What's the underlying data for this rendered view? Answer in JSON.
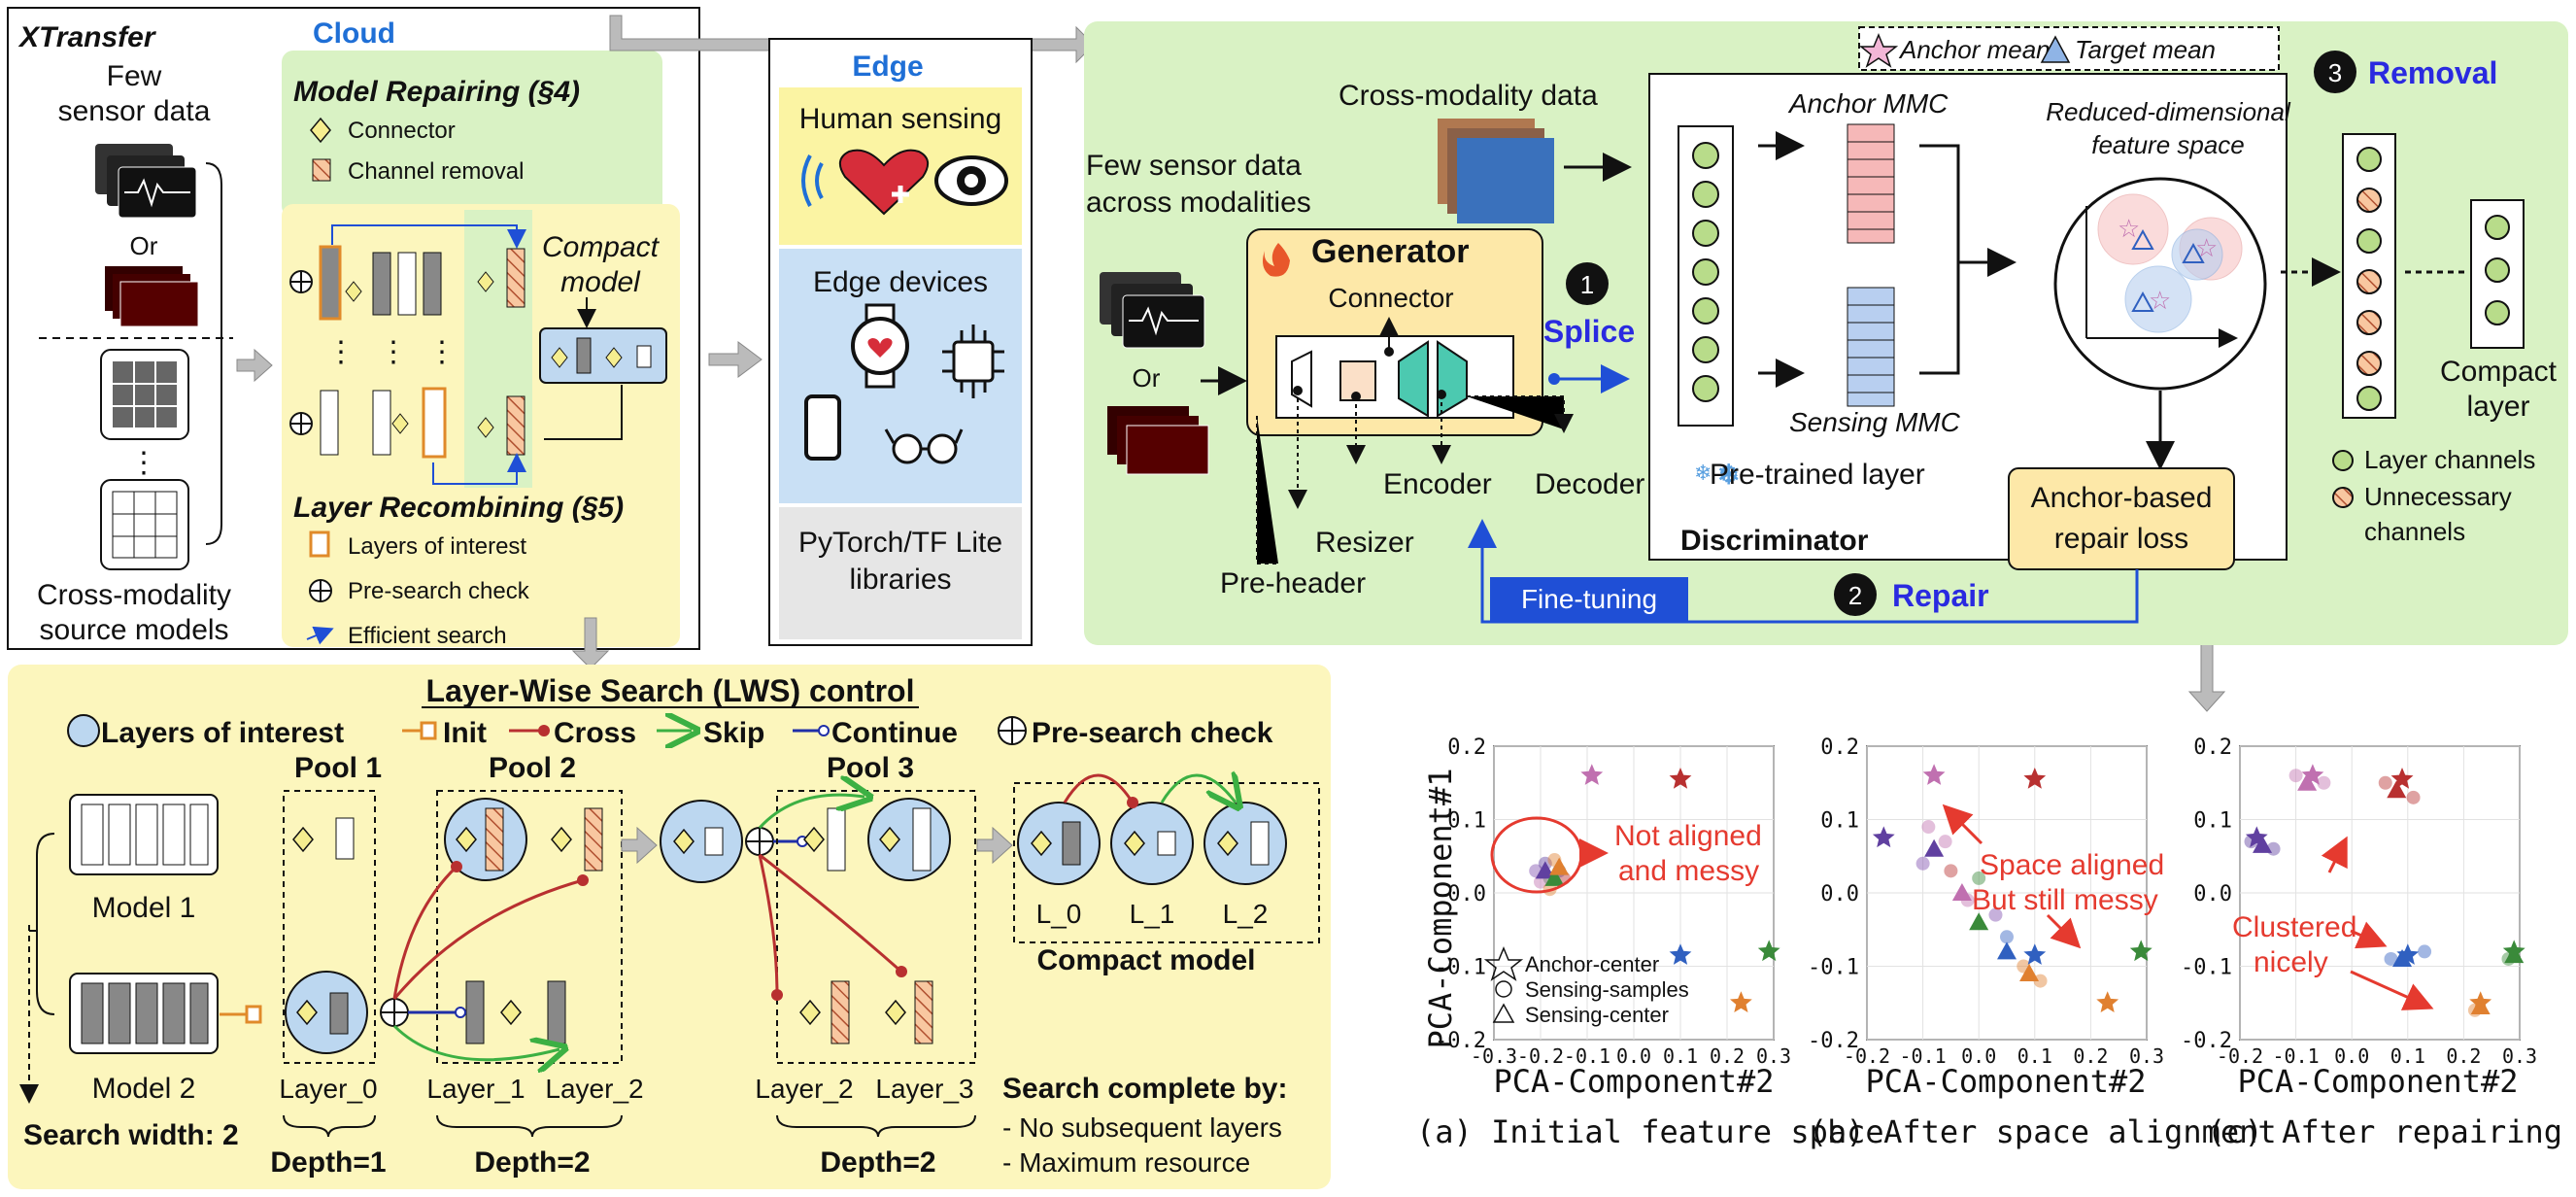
{
  "cloud": {
    "brand": "XTransfer",
    "title": "Cloud",
    "few_sensor_line1": "Few",
    "few_sensor_line2": "sensor data",
    "or": "Or",
    "source_models_line1": "Cross-modality",
    "source_models_line2": "source models",
    "repair_title": "Model Repairing (§4)",
    "repair_items": [
      "Connector",
      "Channel removal"
    ],
    "compact_line1": "Compact",
    "compact_line2": "model",
    "recombine_title": "Layer Recombining (§5)",
    "recombine_items": [
      "Layers of interest",
      "Pre-search check",
      "Efficient search"
    ]
  },
  "edge": {
    "title": "Edge",
    "human_sensing": "Human sensing",
    "devices": "Edge devices",
    "lib_line1": "PyTorch/TF Lite",
    "lib_line2": "libraries"
  },
  "pipeline": {
    "legend_anchor": "Anchor mean",
    "legend_target": "Target mean",
    "cross_modality": "Cross-modality data",
    "few_line1": "Few sensor data",
    "few_line2": "across modalities",
    "or": "Or",
    "generator": "Generator",
    "connector": "Connector",
    "splice_num": "1",
    "splice": "Splice",
    "encoder": "Encoder",
    "decoder": "Decoder",
    "resizer": "Resizer",
    "preheader": "Pre-header",
    "anchor_mmc": "Anchor MMC",
    "sensing_mmc": "Sensing MMC",
    "pretrained": "Pre-trained layer",
    "discriminator": "Discriminator",
    "reduced_line1": "Reduced-dimensional",
    "reduced_line2": "feature space",
    "loss_line1": "Anchor-based",
    "loss_line2": "repair loss",
    "removal_num": "3",
    "removal": "Removal",
    "compact_line1": "Compact",
    "compact_line2": "layer",
    "legend_channels": "Layer channels",
    "legend_unnec_line1": "Unnecessary",
    "legend_unnec_line2": "channels",
    "finetuning": "Fine-tuning",
    "repair_num": "2",
    "repair": "Repair"
  },
  "lws": {
    "title": "Layer-Wise Search (LWS) control",
    "legend": [
      "Layers of interest",
      "Init",
      "Cross",
      "Skip",
      "Continue",
      "Pre-search check"
    ],
    "pools": [
      "Pool 1",
      "Pool 2",
      "Pool 3"
    ],
    "model1": "Model 1",
    "model2": "Model 2",
    "search_width": "Search width: 2",
    "layer_labels": [
      "Layer_0",
      "Layer_1",
      "Layer_2",
      "Layer_2",
      "Layer_3"
    ],
    "depths": [
      "Depth=1",
      "Depth=2",
      "Depth=2"
    ],
    "compact_labels": [
      "L_0",
      "L_1",
      "L_2"
    ],
    "compact_model": "Compact model",
    "complete_title": "Search complete by:",
    "complete_items": [
      "- No subsequent layers",
      "- Maximum resource"
    ]
  },
  "charts_text": {
    "ylabel": "PCA-Component#1",
    "xlabel": "PCA-Component#2",
    "captions": [
      "(a) Initial feature space",
      "(b) After space alignment",
      "(c) After repairing"
    ],
    "legend": [
      "Anchor-center",
      "Sensing-samples",
      "Sensing-center"
    ],
    "annot_a_line1": "Not aligned",
    "annot_a_line2": "and messy",
    "annot_b_line1": "Space aligned",
    "annot_b_line2": "But still messy",
    "annot_c_line1": "Clustered",
    "annot_c_line2": "nicely"
  },
  "chart_data": [
    {
      "type": "scatter",
      "caption": "(a) Initial feature space",
      "xlabel": "PCA-Component#2",
      "ylabel": "PCA-Component#1",
      "xlim": [
        -0.3,
        0.3
      ],
      "ylim": [
        -0.2,
        0.2
      ],
      "xticks": [
        -0.3,
        -0.2,
        -0.1,
        0.0,
        0.1,
        0.2,
        0.3
      ],
      "yticks": [
        -0.2,
        -0.1,
        0.0,
        0.1,
        0.2
      ],
      "anchor_centers": [
        {
          "x": -0.09,
          "y": 0.16,
          "color": "#c070b0"
        },
        {
          "x": 0.1,
          "y": 0.155,
          "color": "#b83030"
        },
        {
          "x": 0.1,
          "y": -0.085,
          "color": "#3060c0"
        },
        {
          "x": 0.29,
          "y": -0.08,
          "color": "#3a8a3a"
        },
        {
          "x": 0.23,
          "y": -0.15,
          "color": "#e08030"
        }
      ],
      "sensing_samples": [
        {
          "x": -0.21,
          "y": 0.03,
          "color": "#8050b0"
        },
        {
          "x": -0.19,
          "y": 0.04,
          "color": "#6040a0"
        },
        {
          "x": -0.18,
          "y": 0.02,
          "color": "#3a8a3a"
        },
        {
          "x": -0.17,
          "y": 0.045,
          "color": "#e08030"
        },
        {
          "x": -0.16,
          "y": 0.03,
          "color": "#3060c0"
        },
        {
          "x": -0.2,
          "y": 0.015,
          "color": "#c070b0"
        },
        {
          "x": -0.15,
          "y": 0.02,
          "color": "#b83030"
        },
        {
          "x": -0.18,
          "y": 0.005,
          "color": "#e08030"
        }
      ],
      "sensing_centers": [
        {
          "x": -0.19,
          "y": 0.03,
          "color": "#6040a0"
        },
        {
          "x": -0.17,
          "y": 0.02,
          "color": "#3a8a3a"
        },
        {
          "x": -0.16,
          "y": 0.035,
          "color": "#e08030"
        }
      ],
      "legend_entries": [
        "Anchor-center",
        "Sensing-samples",
        "Sensing-center"
      ]
    },
    {
      "type": "scatter",
      "caption": "(b) After space alignment",
      "xlabel": "PCA-Component#2",
      "xlim": [
        -0.2,
        0.3
      ],
      "ylim": [
        -0.2,
        0.2
      ],
      "xticks": [
        -0.2,
        -0.1,
        0.0,
        0.1,
        0.2,
        0.3
      ],
      "yticks": [
        -0.2,
        -0.1,
        0.0,
        0.1,
        0.2
      ],
      "anchor_centers": [
        {
          "x": -0.08,
          "y": 0.16,
          "color": "#c070b0"
        },
        {
          "x": 0.1,
          "y": 0.155,
          "color": "#b83030"
        },
        {
          "x": -0.17,
          "y": 0.075,
          "color": "#6040a0"
        },
        {
          "x": 0.1,
          "y": -0.085,
          "color": "#3060c0"
        },
        {
          "x": 0.29,
          "y": -0.08,
          "color": "#3a8a3a"
        },
        {
          "x": 0.23,
          "y": -0.15,
          "color": "#e08030"
        }
      ],
      "sensing_samples": [
        {
          "x": -0.09,
          "y": 0.09,
          "color": "#c070b0"
        },
        {
          "x": -0.06,
          "y": 0.07,
          "color": "#c070b0"
        },
        {
          "x": -0.1,
          "y": 0.04,
          "color": "#8050b0"
        },
        {
          "x": -0.05,
          "y": 0.03,
          "color": "#b83030"
        },
        {
          "x": 0.0,
          "y": 0.02,
          "color": "#3a8a3a"
        },
        {
          "x": -0.02,
          "y": -0.01,
          "color": "#c070b0"
        },
        {
          "x": 0.05,
          "y": -0.06,
          "color": "#3060c0"
        },
        {
          "x": 0.08,
          "y": -0.1,
          "color": "#e08030"
        },
        {
          "x": 0.11,
          "y": -0.12,
          "color": "#e08030"
        },
        {
          "x": 0.03,
          "y": -0.03,
          "color": "#8050b0"
        }
      ],
      "sensing_centers": [
        {
          "x": -0.08,
          "y": 0.06,
          "color": "#6040a0"
        },
        {
          "x": -0.03,
          "y": 0.0,
          "color": "#c070b0"
        },
        {
          "x": 0.0,
          "y": -0.04,
          "color": "#3a8a3a"
        },
        {
          "x": 0.05,
          "y": -0.08,
          "color": "#3060c0"
        },
        {
          "x": 0.09,
          "y": -0.11,
          "color": "#e08030"
        }
      ]
    },
    {
      "type": "scatter",
      "caption": "(c) After repairing",
      "xlabel": "PCA-Component#2",
      "xlim": [
        -0.2,
        0.3
      ],
      "ylim": [
        -0.2,
        0.2
      ],
      "xticks": [
        -0.2,
        -0.1,
        0.0,
        0.1,
        0.2,
        0.3
      ],
      "yticks": [
        -0.2,
        -0.1,
        0.0,
        0.1,
        0.2
      ],
      "anchor_centers": [
        {
          "x": -0.07,
          "y": 0.16,
          "color": "#c070b0"
        },
        {
          "x": 0.09,
          "y": 0.155,
          "color": "#b83030"
        },
        {
          "x": -0.17,
          "y": 0.075,
          "color": "#6040a0"
        },
        {
          "x": 0.1,
          "y": -0.085,
          "color": "#3060c0"
        },
        {
          "x": 0.29,
          "y": -0.08,
          "color": "#3a8a3a"
        },
        {
          "x": 0.23,
          "y": -0.15,
          "color": "#e08030"
        }
      ],
      "sensing_samples": [
        {
          "x": -0.1,
          "y": 0.16,
          "color": "#c070b0"
        },
        {
          "x": -0.05,
          "y": 0.15,
          "color": "#c070b0"
        },
        {
          "x": 0.06,
          "y": 0.15,
          "color": "#b83030"
        },
        {
          "x": 0.11,
          "y": 0.13,
          "color": "#b83030"
        },
        {
          "x": -0.18,
          "y": 0.07,
          "color": "#6040a0"
        },
        {
          "x": -0.14,
          "y": 0.06,
          "color": "#6040a0"
        },
        {
          "x": 0.07,
          "y": -0.09,
          "color": "#3060c0"
        },
        {
          "x": 0.13,
          "y": -0.08,
          "color": "#3060c0"
        },
        {
          "x": 0.28,
          "y": -0.09,
          "color": "#3a8a3a"
        },
        {
          "x": 0.22,
          "y": -0.16,
          "color": "#e08030"
        }
      ],
      "sensing_centers": [
        {
          "x": -0.08,
          "y": 0.15,
          "color": "#c070b0"
        },
        {
          "x": 0.08,
          "y": 0.14,
          "color": "#b83030"
        },
        {
          "x": -0.16,
          "y": 0.065,
          "color": "#6040a0"
        },
        {
          "x": 0.09,
          "y": -0.09,
          "color": "#3060c0"
        },
        {
          "x": 0.29,
          "y": -0.085,
          "color": "#3a8a3a"
        },
        {
          "x": 0.23,
          "y": -0.155,
          "color": "#e08030"
        }
      ]
    }
  ]
}
